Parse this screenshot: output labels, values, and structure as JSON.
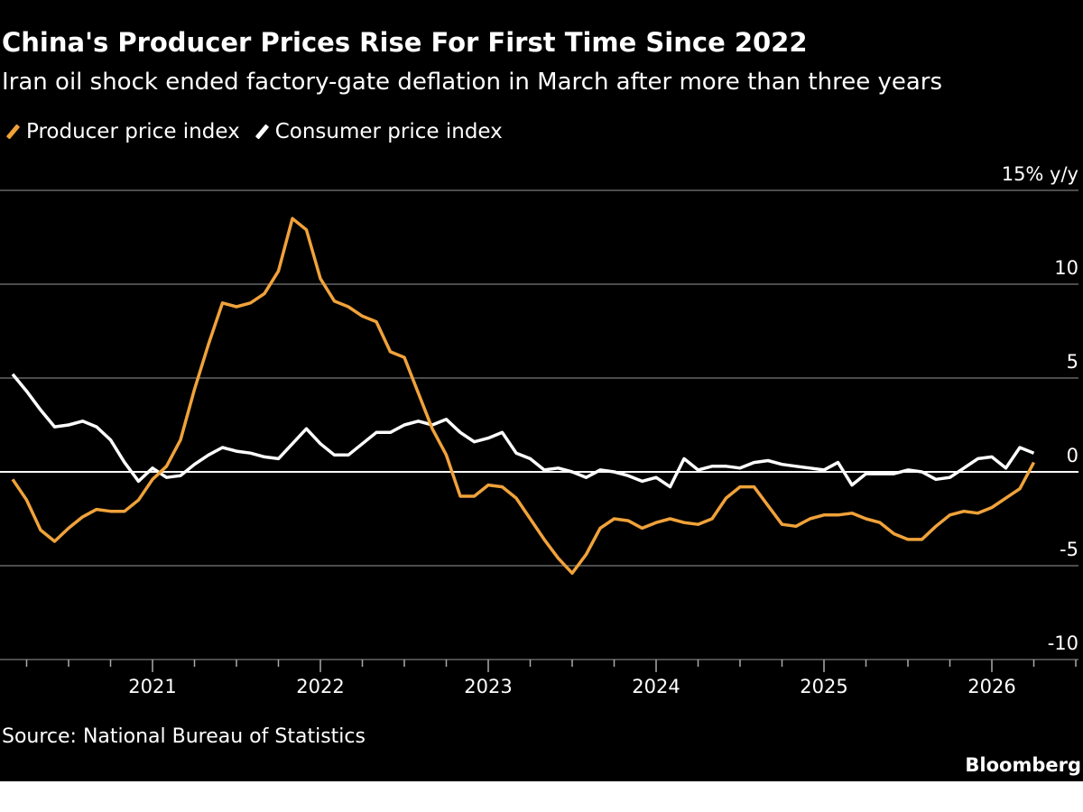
{
  "title": "China's Producer Prices Rise For First Time Since 2022",
  "subtitle": "Iran oil shock ended factory-gate deflation in March after more than three years",
  "source": "Source: National Bureau of Statistics",
  "brand": "Bloomberg",
  "chart_data": {
    "type": "line",
    "title": "China's Producer Prices Rise For First Time Since 2022",
    "ylabel": "% y/y",
    "ylim": [
      -10,
      15
    ],
    "yticks": [
      15,
      10,
      5,
      0,
      -5,
      -10
    ],
    "ytick_labels": [
      "15% y/y",
      "10",
      "5",
      "0",
      "-5",
      "-10"
    ],
    "xticks": [
      "2021",
      "2022",
      "2023",
      "2024",
      "2025",
      "2026"
    ],
    "grid": true,
    "legend": "top-left",
    "start_month": "2020-02",
    "frequency": "monthly",
    "series": [
      {
        "name": "Producer price index",
        "color": "#f0a23a",
        "values": [
          -0.4,
          -1.5,
          -3.1,
          -3.7,
          -3.0,
          -2.4,
          -2.0,
          -2.1,
          -2.1,
          -1.5,
          -0.4,
          0.3,
          1.7,
          4.4,
          6.8,
          9.0,
          8.8,
          9.0,
          9.5,
          10.7,
          13.5,
          12.9,
          10.3,
          9.1,
          8.8,
          8.3,
          8.0,
          6.4,
          6.1,
          4.2,
          2.3,
          0.9,
          -1.3,
          -1.3,
          -0.7,
          -0.8,
          -1.4,
          -2.5,
          -3.6,
          -4.6,
          -5.4,
          -4.4,
          -3.0,
          -2.5,
          -2.6,
          -3.0,
          -2.7,
          -2.5,
          -2.7,
          -2.8,
          -2.5,
          -1.4,
          -0.8,
          -0.8,
          -1.8,
          -2.8,
          -2.9,
          -2.5,
          -2.3,
          -2.3,
          -2.2,
          -2.5,
          -2.7,
          -3.3,
          -3.6,
          -3.6,
          -2.9,
          -2.3,
          -2.1,
          -2.2,
          -1.9,
          -1.4,
          -0.9,
          0.5
        ]
      },
      {
        "name": "Consumer price index",
        "color": "#ffffff",
        "values": [
          5.2,
          4.3,
          3.3,
          2.4,
          2.5,
          2.7,
          2.4,
          1.7,
          0.5,
          -0.5,
          0.2,
          -0.3,
          -0.2,
          0.4,
          0.9,
          1.3,
          1.1,
          1.0,
          0.8,
          0.7,
          1.5,
          2.3,
          1.5,
          0.9,
          0.9,
          1.5,
          2.1,
          2.1,
          2.5,
          2.7,
          2.5,
          2.8,
          2.1,
          1.6,
          1.8,
          2.1,
          1.0,
          0.7,
          0.1,
          0.2,
          0.0,
          -0.3,
          0.1,
          0.0,
          -0.2,
          -0.5,
          -0.3,
          -0.8,
          0.7,
          0.1,
          0.3,
          0.3,
          0.2,
          0.5,
          0.6,
          0.4,
          0.3,
          0.2,
          0.1,
          0.5,
          -0.7,
          -0.1,
          -0.1,
          -0.1,
          0.1,
          0.0,
          -0.4,
          -0.3,
          0.2,
          0.7,
          0.8,
          0.2,
          1.3,
          1.0
        ]
      }
    ]
  }
}
